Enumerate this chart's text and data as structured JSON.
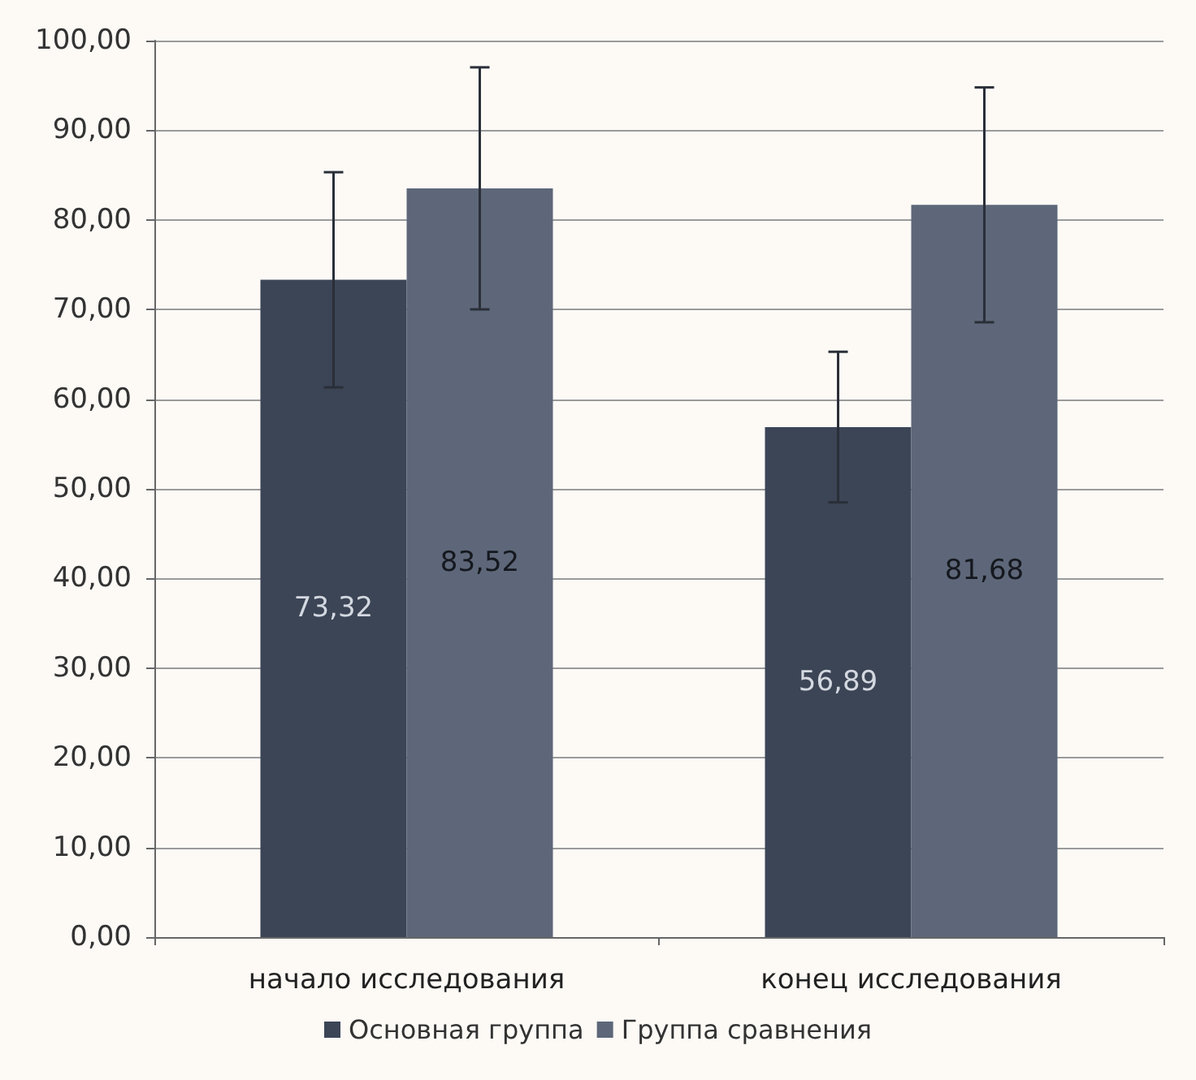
{
  "chart_data": {
    "type": "bar",
    "categories": [
      "начало исследования",
      "конец исследования"
    ],
    "series": [
      {
        "name": "Основная группа",
        "color": "#3b4556",
        "values": [
          73.32,
          56.89
        ],
        "value_labels": [
          "73,32",
          "56,89"
        ],
        "errors": [
          12,
          8.4
        ]
      },
      {
        "name": "Группа сравнения",
        "color": "#5d6779",
        "values": [
          83.52,
          81.68
        ],
        "value_labels": [
          "83,52",
          "81,68"
        ],
        "errors": [
          13.5,
          13.1
        ]
      }
    ],
    "ylim": [
      0,
      100
    ],
    "yticks": [
      {
        "value": 0,
        "label": "0,00"
      },
      {
        "value": 10,
        "label": "10,00"
      },
      {
        "value": 20,
        "label": "20,00"
      },
      {
        "value": 30,
        "label": "30,00"
      },
      {
        "value": 40,
        "label": "40,00"
      },
      {
        "value": 50,
        "label": "50,00"
      },
      {
        "value": 60,
        "label": "60,00"
      },
      {
        "value": 70,
        "label": "70,00"
      },
      {
        "value": 80,
        "label": "80,00"
      },
      {
        "value": 90,
        "label": "90,00"
      },
      {
        "value": 100,
        "label": "100,00"
      }
    ],
    "grid": "y",
    "legend": "bottom"
  }
}
